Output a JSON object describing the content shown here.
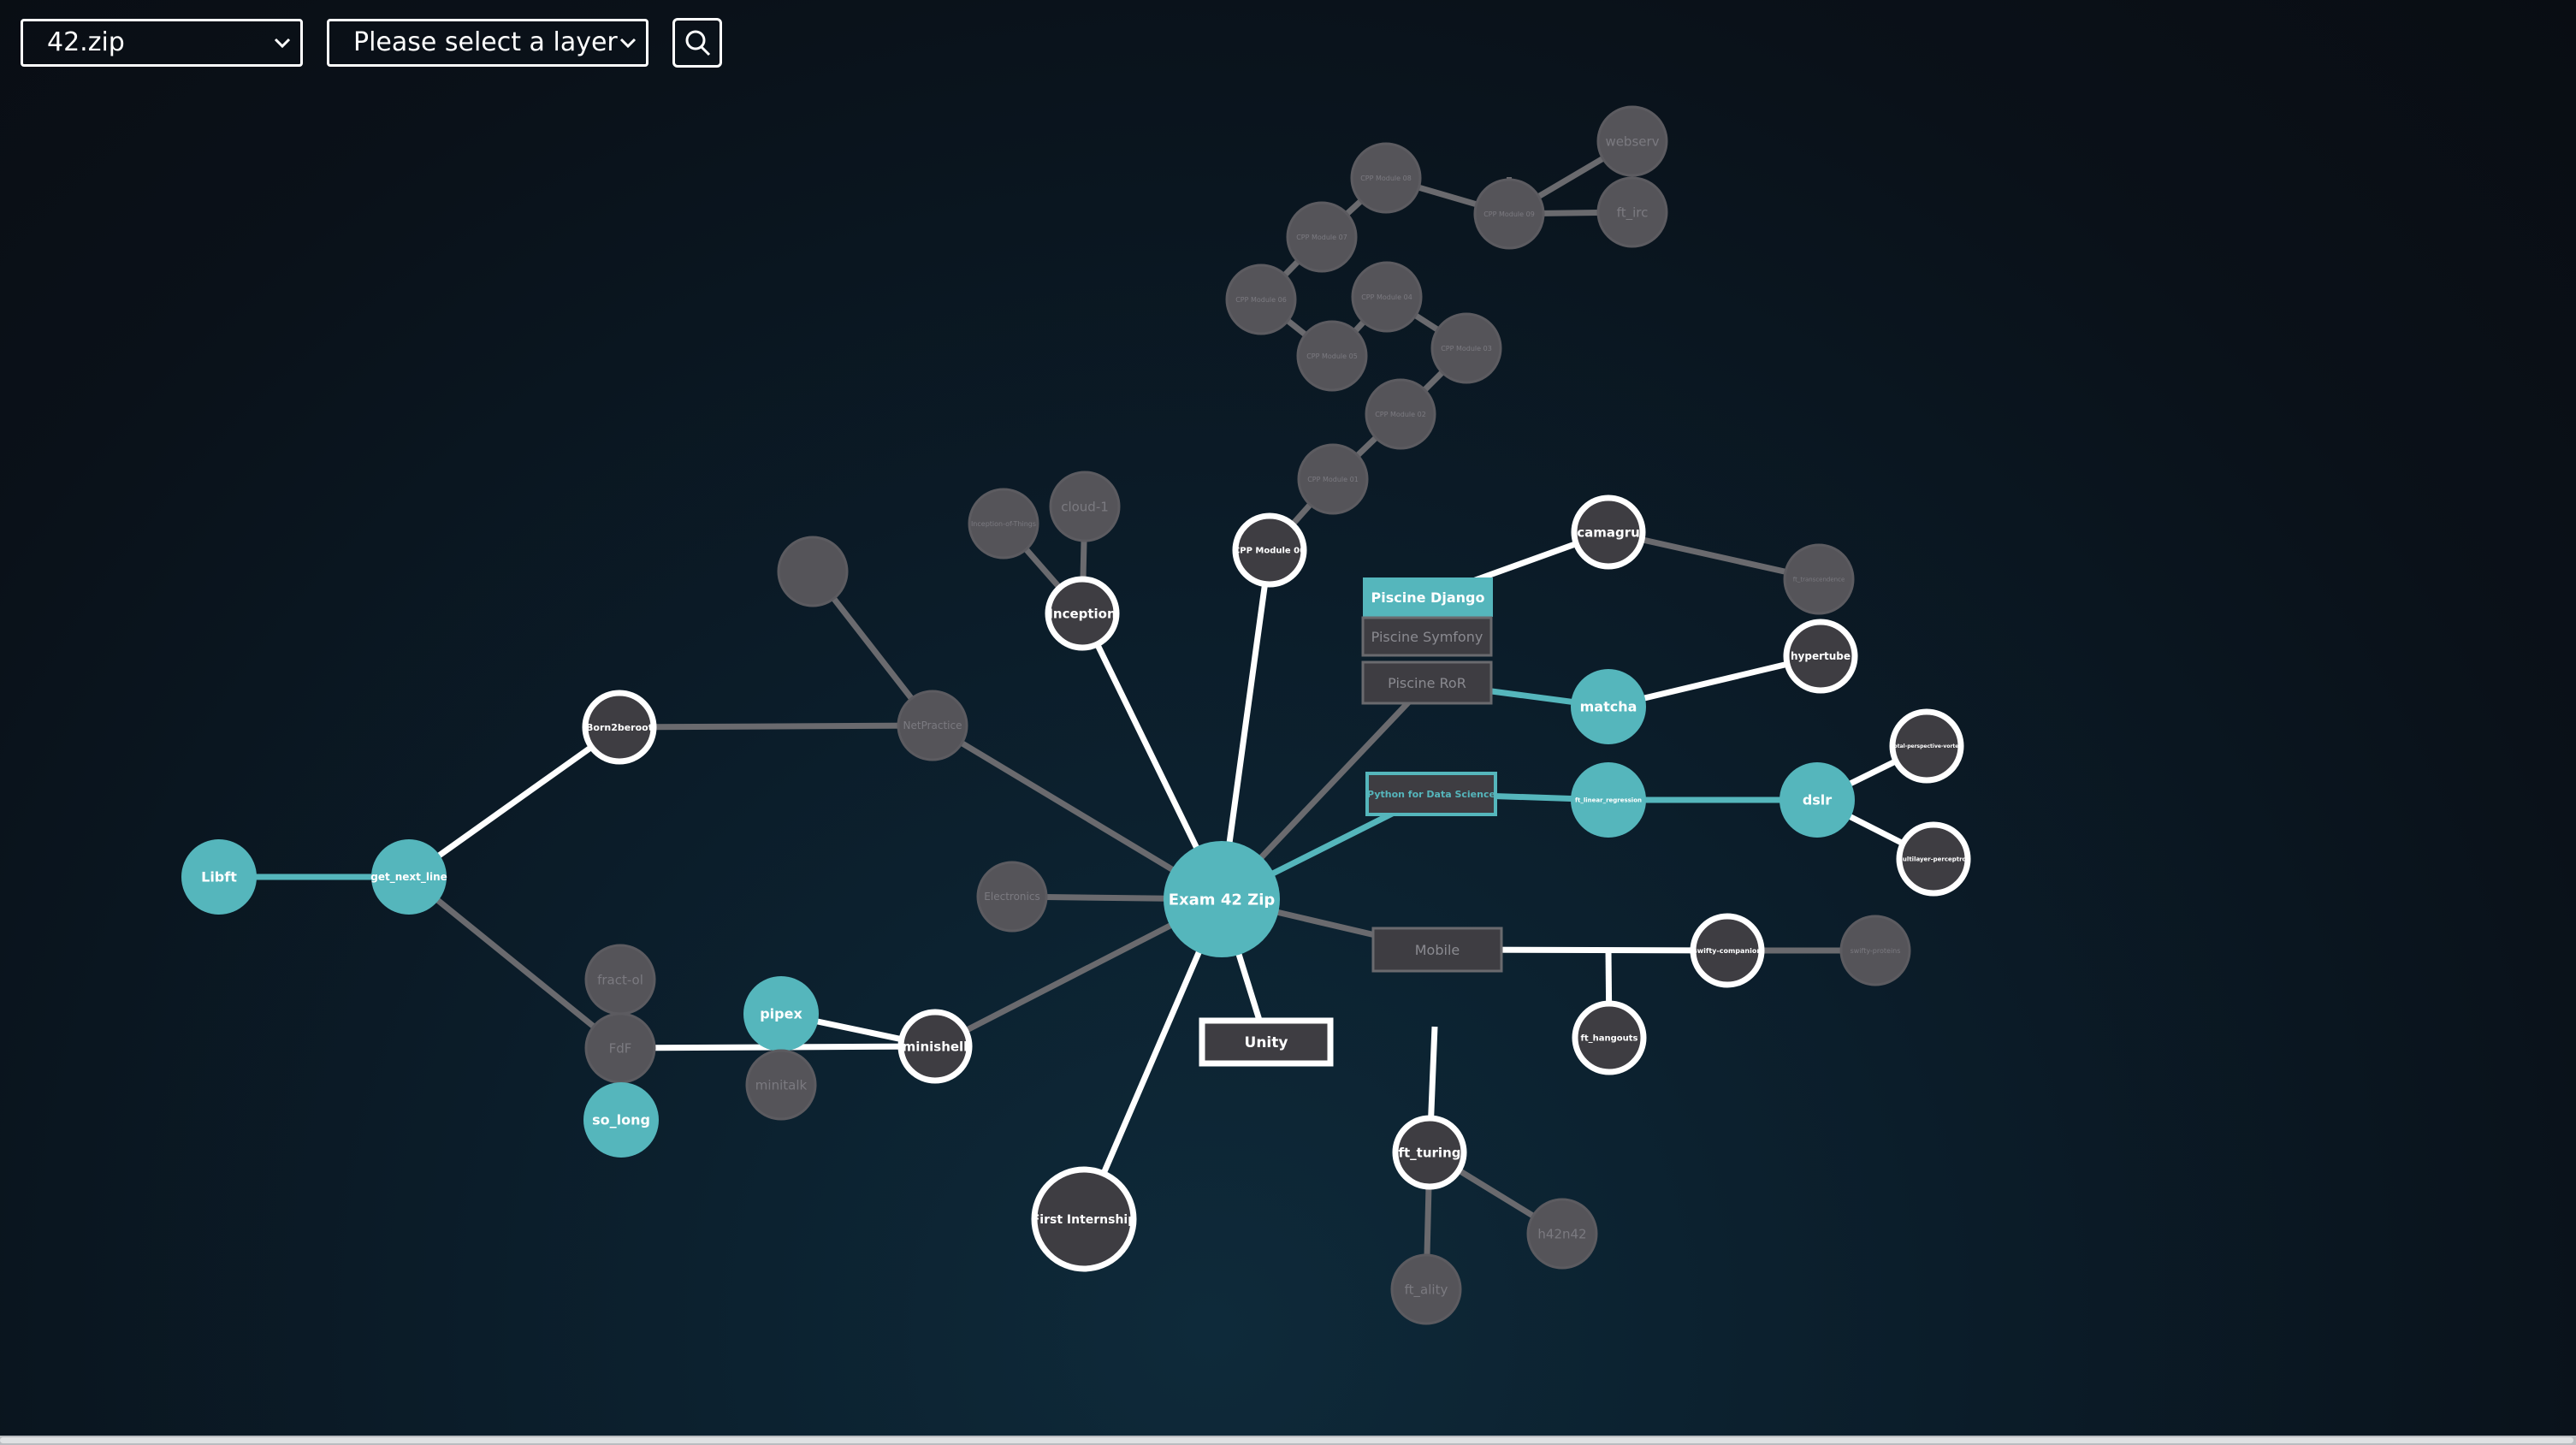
{
  "toolbar": {
    "file_select": "42.zip",
    "layer_select": "Please select a layer"
  },
  "icons": {
    "chevron": "chevron-down-icon",
    "search": "search-icon"
  },
  "colors": {
    "teal": "#55b6bc",
    "gray_node": "#555459",
    "dark_node": "#3e3d42",
    "white": "#ffffff",
    "gray_edge": "#6a6a6e"
  },
  "graph": {
    "nodes": [
      {
        "id": "exam",
        "label": "Exam 42 Zip",
        "state": "teal"
      },
      {
        "id": "libft",
        "label": "Libft",
        "state": "teal"
      },
      {
        "id": "gnl",
        "label": "get_next_line",
        "state": "teal"
      },
      {
        "id": "born2beroot",
        "label": "Born2beroot",
        "state": "available"
      },
      {
        "id": "netpractice",
        "label": "NetPractice",
        "state": "locked"
      },
      {
        "id": "blank_node",
        "label": "",
        "state": "locked"
      },
      {
        "id": "inception",
        "label": "Inception",
        "state": "available"
      },
      {
        "id": "iot",
        "label": "Inception-of-Things",
        "state": "locked"
      },
      {
        "id": "cloud1",
        "label": "cloud-1",
        "state": "locked"
      },
      {
        "id": "cpp00",
        "label": "CPP Module 00",
        "state": "available"
      },
      {
        "id": "cpp01",
        "label": "CPP Module 01",
        "state": "locked"
      },
      {
        "id": "cpp02",
        "label": "CPP Module 02",
        "state": "locked"
      },
      {
        "id": "cpp03",
        "label": "CPP Module 03",
        "state": "locked"
      },
      {
        "id": "cpp04",
        "label": "CPP Module 04",
        "state": "locked"
      },
      {
        "id": "cpp05",
        "label": "CPP Module 05",
        "state": "locked"
      },
      {
        "id": "cpp06",
        "label": "CPP Module 06",
        "state": "locked"
      },
      {
        "id": "cpp07",
        "label": "CPP Module 07",
        "state": "locked"
      },
      {
        "id": "cpp08",
        "label": "CPP Module 08",
        "state": "locked"
      },
      {
        "id": "cpp09",
        "label": "CPP Module 09",
        "state": "locked"
      },
      {
        "id": "webserv",
        "label": "webserv",
        "state": "locked"
      },
      {
        "id": "ftirc",
        "label": "ft_irc",
        "state": "locked"
      },
      {
        "id": "camagru",
        "label": "camagru",
        "state": "available"
      },
      {
        "id": "transcendence",
        "label": "ft_transcendence",
        "state": "locked"
      },
      {
        "id": "matcha",
        "label": "matcha",
        "state": "teal"
      },
      {
        "id": "hypertube",
        "label": "hypertube",
        "state": "available"
      },
      {
        "id": "linreg",
        "label": "ft_linear_regression",
        "state": "teal"
      },
      {
        "id": "dslr",
        "label": "dslr",
        "state": "teal"
      },
      {
        "id": "mlp",
        "label": "multilayer-perceptron",
        "state": "available"
      },
      {
        "id": "totalp",
        "label": "total-perspective-vortex",
        "state": "available"
      },
      {
        "id": "electronics",
        "label": "Electronics",
        "state": "locked"
      },
      {
        "id": "swifty_comp",
        "label": "swifty-companion",
        "state": "available"
      },
      {
        "id": "swifty_prot",
        "label": "swifty-proteins",
        "state": "locked"
      },
      {
        "id": "hangouts",
        "label": "ft_hangouts",
        "state": "available"
      },
      {
        "id": "minishell",
        "label": "minishell",
        "state": "available"
      },
      {
        "id": "pipex",
        "label": "pipex",
        "state": "teal"
      },
      {
        "id": "minitalk",
        "label": "minitalk",
        "state": "locked"
      },
      {
        "id": "fdf",
        "label": "FdF",
        "state": "locked"
      },
      {
        "id": "fractol",
        "label": "fract-ol",
        "state": "locked"
      },
      {
        "id": "so_long",
        "label": "so_long",
        "state": "teal"
      },
      {
        "id": "internship",
        "label": "First Internship",
        "state": "available"
      },
      {
        "id": "ftturing",
        "label": "ft_turing",
        "state": "available"
      },
      {
        "id": "h42n42",
        "label": "h42n42",
        "state": "locked"
      },
      {
        "id": "ftality",
        "label": "ft_ality",
        "state": "locked"
      }
    ],
    "boxes": [
      {
        "id": "django",
        "label": "Piscine Django",
        "state": "teal"
      },
      {
        "id": "symfony",
        "label": "Piscine Symfony",
        "state": "locked"
      },
      {
        "id": "ror",
        "label": "Piscine RoR",
        "state": "locked"
      },
      {
        "id": "pyds",
        "label": "Python for Data Science",
        "state": "teal-outline"
      },
      {
        "id": "mobile",
        "label": "Mobile",
        "state": "locked"
      },
      {
        "id": "unity",
        "label": "Unity",
        "state": "available"
      }
    ],
    "edges": [
      [
        "libft",
        "gnl"
      ],
      [
        "gnl",
        "born2beroot"
      ],
      [
        "gnl",
        "fdf"
      ],
      [
        "born2beroot",
        "netpractice"
      ],
      [
        "netpractice",
        "blank_node"
      ],
      [
        "netpractice",
        "exam"
      ],
      [
        "inception",
        "iot"
      ],
      [
        "inception",
        "cloud1"
      ],
      [
        "inception",
        "exam"
      ],
      [
        "cpp00",
        "exam"
      ],
      [
        "cpp00",
        "cpp01"
      ],
      [
        "cpp01",
        "cpp02"
      ],
      [
        "cpp02",
        "cpp03"
      ],
      [
        "cpp03",
        "cpp04"
      ],
      [
        "cpp04",
        "cpp05"
      ],
      [
        "cpp05",
        "cpp06"
      ],
      [
        "cpp06",
        "cpp07"
      ],
      [
        "cpp07",
        "cpp08"
      ],
      [
        "cpp08",
        "cpp09"
      ],
      [
        "cpp09",
        "webserv"
      ],
      [
        "cpp09",
        "ftirc"
      ],
      [
        "exam",
        "ror"
      ],
      [
        "ror",
        "matcha"
      ],
      [
        "django",
        "camagru"
      ],
      [
        "camagru",
        "transcendence"
      ],
      [
        "matcha",
        "hypertube"
      ],
      [
        "exam",
        "pyds"
      ],
      [
        "pyds",
        "linreg"
      ],
      [
        "linreg",
        "dslr"
      ],
      [
        "dslr",
        "mlp"
      ],
      [
        "dslr",
        "totalp"
      ],
      [
        "exam",
        "electronics"
      ],
      [
        "exam",
        "mobile"
      ],
      [
        "mobile",
        "swifty_comp"
      ],
      [
        "swifty_comp",
        "swifty_prot"
      ],
      [
        "mobile",
        "hangouts"
      ],
      [
        "exam",
        "unity"
      ],
      [
        "exam",
        "minishell"
      ],
      [
        "minishell",
        "pipex"
      ],
      [
        "minishell",
        "fdf"
      ],
      [
        "pipex",
        "minitalk"
      ],
      [
        "fdf",
        "fractol"
      ],
      [
        "fdf",
        "so_long"
      ],
      [
        "exam",
        "internship"
      ],
      [
        "ftturing",
        "ftturing_top"
      ],
      [
        "ftturing",
        "h42n42"
      ],
      [
        "ftturing",
        "ftality"
      ]
    ]
  }
}
